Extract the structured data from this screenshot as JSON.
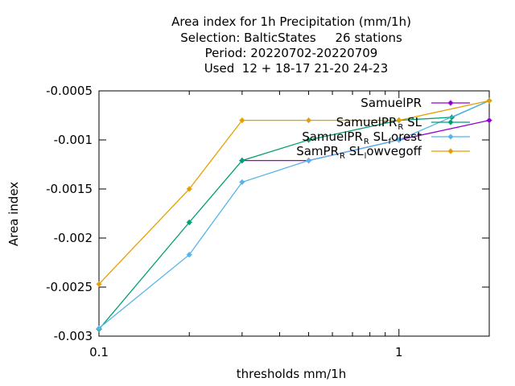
{
  "chart_data": {
    "type": "line",
    "title_lines": [
      "Area index  for 1h Precipitation (mm/1h)",
      "Selection: BalticStates     26 stations",
      "Period: 20220702-20220709",
      "Used  12 + 18-17 21-20 24-23"
    ],
    "xlabel": "thresholds mm/1h",
    "ylabel": "Area index",
    "x_scale": "log",
    "xlim": [
      0.1,
      2
    ],
    "ylim": [
      -0.003,
      -0.0005
    ],
    "x_ticks": [
      0.1,
      1
    ],
    "x_tick_labels": [
      "0.1",
      "1"
    ],
    "y_ticks": [
      -0.003,
      -0.0025,
      -0.002,
      -0.0015,
      -0.001,
      -0.0005
    ],
    "y_tick_labels": [
      "-0.003",
      "-0.0025",
      "-0.002",
      "-0.0015",
      "-0.001",
      "-0.0005"
    ],
    "legend_position": "top-right",
    "grid": false,
    "series": [
      {
        "name": "SamuelPR",
        "label_parts": [
          [
            "SamuelPR",
            false
          ]
        ],
        "color": "#9400d3",
        "x": [
          0.3,
          0.5,
          1,
          2
        ],
        "y": [
          -0.00121,
          -0.00121,
          -0.001,
          -0.0008
        ]
      },
      {
        "name": "SamuelPR_R SL",
        "label_parts": [
          [
            "SamuelPR",
            false
          ],
          [
            "R",
            true
          ],
          [
            " SL",
            false
          ]
        ],
        "color": "#009e73",
        "x": [
          0.1,
          0.2,
          0.3,
          0.5,
          1,
          1.5,
          2
        ],
        "y": [
          -0.00293,
          -0.00184,
          -0.00121,
          -0.001,
          -0.0008,
          -0.00077,
          -0.0006
        ]
      },
      {
        "name": "SamuelPR_R SL_forest",
        "label_parts": [
          [
            "SamuelPR",
            false
          ],
          [
            "R",
            true
          ],
          [
            " SL",
            false
          ],
          [
            "f",
            true
          ],
          [
            "orest",
            false
          ]
        ],
        "color": "#56b4e9",
        "x": [
          0.1,
          0.2,
          0.3,
          0.5,
          1,
          2
        ],
        "y": [
          -0.00292,
          -0.00217,
          -0.00143,
          -0.00121,
          -0.001,
          -0.0006
        ]
      },
      {
        "name": "SamPR_R SL_lowvegoff",
        "label_parts": [
          [
            "SamPR",
            false
          ],
          [
            "R",
            true
          ],
          [
            " SL",
            false
          ],
          [
            "l",
            true
          ],
          [
            "owvegoff",
            false
          ]
        ],
        "color": "#e69f00",
        "x": [
          0.1,
          0.2,
          0.3,
          0.5,
          1,
          2
        ],
        "y": [
          -0.00247,
          -0.0015,
          -0.0008,
          -0.0008,
          -0.0008,
          -0.0006
        ]
      }
    ]
  }
}
